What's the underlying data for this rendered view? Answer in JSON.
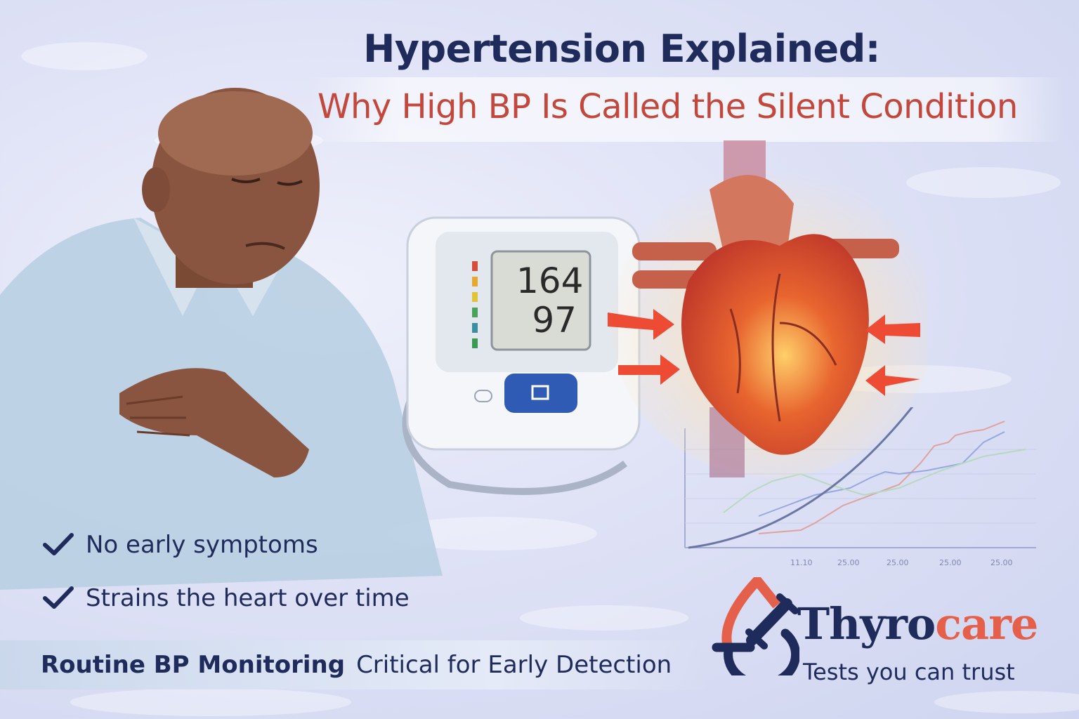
{
  "header": {
    "title": "Hypertension Explained:",
    "subtitle": "Why High BP Is Called the Silent Condition"
  },
  "monitor": {
    "systolic": "164",
    "diastolic": "97"
  },
  "checklist": [
    {
      "icon": "checkmark-icon",
      "label": "No early symptoms"
    },
    {
      "icon": "checkmark-icon",
      "label": "Strains the heart over time"
    }
  ],
  "banner": {
    "bold": "Routine BP Monitoring",
    "regular": "Critical for Early Detection"
  },
  "logo": {
    "brand_part1": "Thyro",
    "brand_part2": "care",
    "tagline": "Tests you can trust"
  },
  "background_chart": {
    "tick_labels": [
      "11.10",
      "25.00",
      "25.00",
      "25.00",
      "25.00"
    ]
  },
  "colors": {
    "navy": "#1f2b5a",
    "red": "#c4473b",
    "brand_orange": "#e5604a",
    "background": "#dfe2f6"
  }
}
